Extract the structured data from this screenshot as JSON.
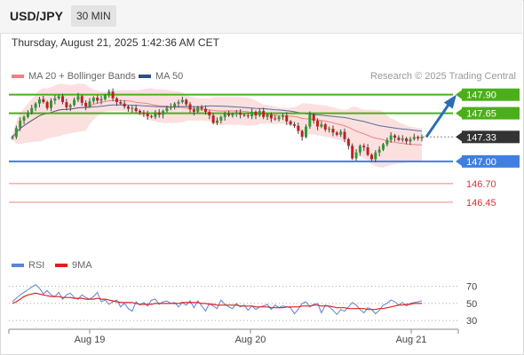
{
  "header": {
    "symbol": "USD/JPY",
    "interval": "30 MIN"
  },
  "datetime": "Thursday, August 21, 2025 1:42:36 AM CET",
  "credit": "Research © 2025 Trading Central",
  "colors": {
    "ma20": "#f08080",
    "ma50": "#2b4f8c",
    "band": "#fbd5d5",
    "resistance": "#4caf1a",
    "support": "#3f7fe0",
    "support2": "#f08080",
    "current": "#333333",
    "arrow": "#2a6db5",
    "rsi": "#5b84d6",
    "rsi_ma": "#e02020",
    "candle_up": "#2e9a2e",
    "candle_down": "#c02020"
  },
  "chart_data": [
    {
      "type": "candlestick",
      "legend": [
        {
          "name": "MA 20 + Bollinger Bands",
          "color": "#f08080"
        },
        {
          "name": "MA 50",
          "color": "#2b4f8c"
        }
      ],
      "legend_position": "top-left",
      "x_ticks": [
        "Aug 19",
        "Aug 20",
        "Aug 21"
      ],
      "ylim": [
        146.4,
        147.98
      ],
      "levels": [
        {
          "value": 147.9,
          "label": "147.90",
          "kind": "resistance"
        },
        {
          "value": 147.65,
          "label": "147.65",
          "kind": "resistance"
        },
        {
          "value": 147.33,
          "label": "147.33",
          "kind": "current"
        },
        {
          "value": 147.0,
          "label": "147.00",
          "kind": "support"
        },
        {
          "value": 146.7,
          "label": "146.70",
          "kind": "support2"
        },
        {
          "value": 146.45,
          "label": "146.45",
          "kind": "support2"
        }
      ],
      "forecast_arrow": {
        "from": 147.33,
        "to": 147.9
      },
      "close_series": [
        147.33,
        147.45,
        147.55,
        147.6,
        147.66,
        147.72,
        147.78,
        147.84,
        147.8,
        147.72,
        147.82,
        147.85,
        147.88,
        147.8,
        147.73,
        147.76,
        147.83,
        147.88,
        147.79,
        147.74,
        147.81,
        147.86,
        147.82,
        147.84,
        147.89,
        147.94,
        147.85,
        147.8,
        147.78,
        147.74,
        147.71,
        147.72,
        147.68,
        147.66,
        147.64,
        147.61,
        147.6,
        147.66,
        147.63,
        147.68,
        147.72,
        147.74,
        147.78,
        147.8,
        147.83,
        147.77,
        147.7,
        147.67,
        147.73,
        147.71,
        147.67,
        147.62,
        147.52,
        147.55,
        147.6,
        147.64,
        147.62,
        147.64,
        147.66,
        147.63,
        147.62,
        147.61,
        147.67,
        147.62,
        147.68,
        147.6,
        147.63,
        147.58,
        147.57,
        147.6,
        147.62,
        147.54,
        147.5,
        147.48,
        147.41,
        147.33,
        147.47,
        147.63,
        147.55,
        147.47,
        147.5,
        147.43,
        147.44,
        147.39,
        147.36,
        147.4,
        147.3,
        147.21,
        147.04,
        147.12,
        147.21,
        147.19,
        147.09,
        147.03,
        147.12,
        147.16,
        147.23,
        147.29,
        147.35,
        147.32,
        147.29,
        147.31,
        147.27,
        147.3,
        147.33,
        147.31,
        147.33
      ],
      "last_price": 147.33
    },
    {
      "type": "line",
      "legend": [
        {
          "name": "RSI",
          "color": "#5b84d6"
        },
        {
          "name": "9MA",
          "color": "#e02020"
        }
      ],
      "ylim": [
        25,
        80
      ],
      "y_ticks": [
        70,
        50,
        30
      ],
      "series": [
        {
          "name": "RSI",
          "values": [
            52,
            56,
            60,
            63,
            66,
            69,
            72,
            68,
            61,
            65,
            60,
            58,
            63,
            55,
            60,
            62,
            57,
            55,
            60,
            57,
            55,
            58,
            63,
            52,
            54,
            49,
            52,
            54,
            46,
            50,
            44,
            41,
            52,
            48,
            51,
            47,
            54,
            55,
            49,
            52,
            53,
            50,
            51,
            46,
            51,
            48,
            53,
            45,
            53,
            47,
            41,
            50,
            47,
            44,
            54,
            49,
            46,
            44,
            50,
            46,
            48,
            42,
            47,
            43,
            46,
            47,
            49,
            43,
            48,
            45,
            47,
            46,
            45,
            38,
            43,
            50,
            52,
            46,
            49,
            50,
            39,
            48,
            46,
            42,
            37,
            43,
            41,
            46,
            51,
            48,
            43,
            39,
            45,
            43,
            38,
            42,
            48,
            50,
            54,
            52,
            48,
            51,
            47,
            50,
            51,
            52,
            53
          ]
        },
        {
          "name": "9MA",
          "values": [
            50,
            52,
            55,
            58,
            60,
            61,
            62,
            61,
            60,
            59,
            58,
            58,
            58,
            57,
            57,
            57,
            56,
            56,
            56,
            55,
            55,
            55,
            56,
            55,
            55,
            54,
            53,
            52,
            51,
            51,
            51,
            51,
            50,
            49,
            49,
            49,
            49,
            50,
            50,
            50,
            50,
            50,
            50,
            50,
            51,
            51,
            51,
            51,
            51,
            50,
            50,
            49,
            49,
            48,
            48,
            48,
            48,
            48,
            48,
            47,
            47,
            47,
            47,
            46,
            46,
            46,
            46,
            45,
            45,
            45,
            45,
            46,
            46,
            46,
            46,
            47,
            47,
            47,
            48,
            48,
            47,
            47,
            47,
            46,
            45,
            45,
            45,
            44,
            44,
            44,
            44,
            44,
            43,
            43,
            43,
            44,
            44,
            45,
            46,
            47,
            48,
            48,
            49,
            49,
            50,
            50,
            50
          ]
        }
      ]
    }
  ]
}
